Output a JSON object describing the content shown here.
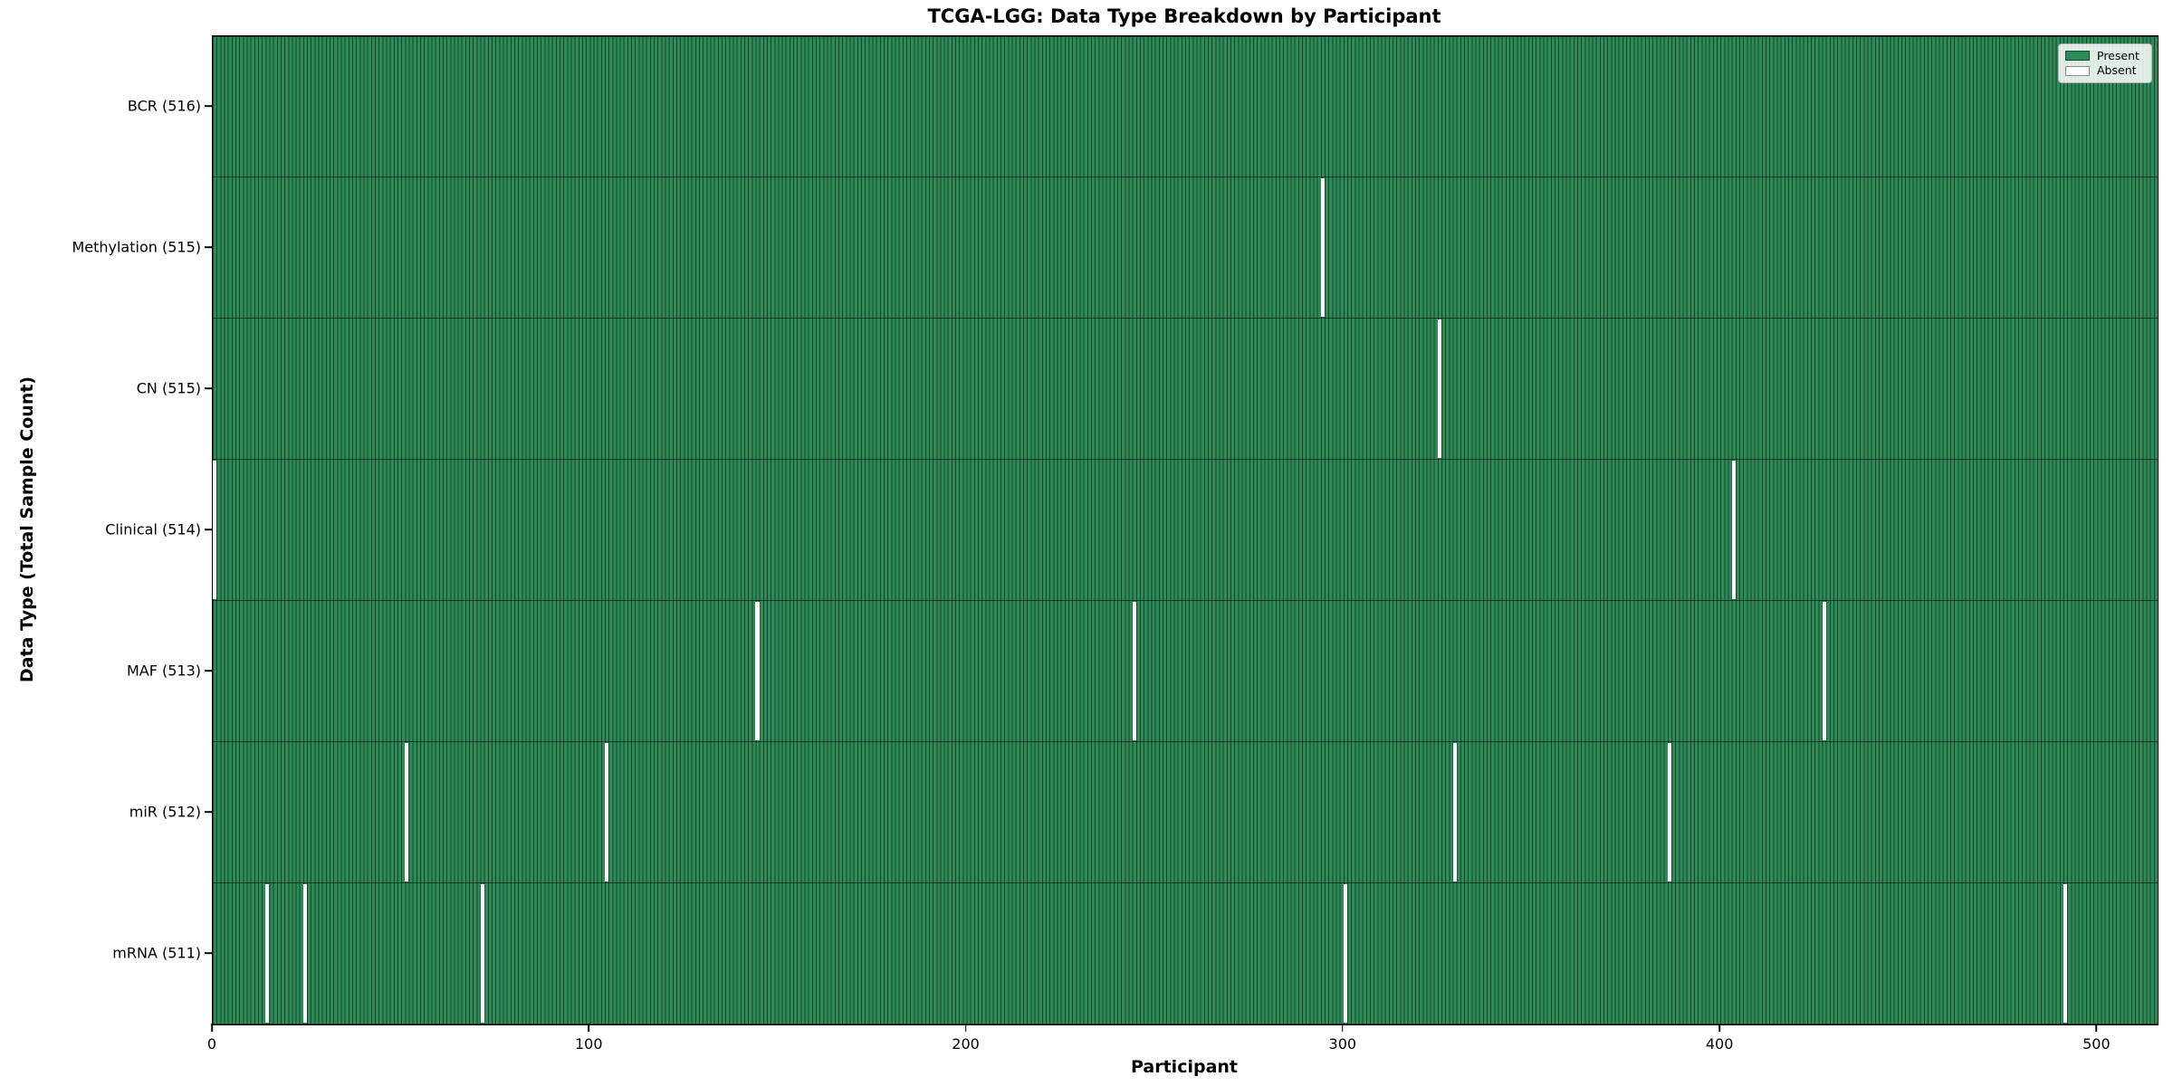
{
  "title": "TCGA-LGG: Data Type Breakdown by Participant",
  "legend": {
    "present_label": "Present",
    "absent_label": "Absent"
  },
  "colors": {
    "present": "#2E8B57",
    "absent": "#ffffff",
    "bar_edge": "#17452B"
  },
  "chart_data": {
    "type": "heatmap",
    "title": "TCGA-LGG: Data Type Breakdown by Participant",
    "xlabel": "Participant",
    "ylabel": "Data Type (Total Sample Count)",
    "x_range": [
      0,
      516
    ],
    "n_participants": 516,
    "xticks": [
      0,
      100,
      200,
      300,
      400,
      500
    ],
    "grid": false,
    "legend_position": "upper right",
    "legend": [
      {
        "label": "Present",
        "color": "#2E8B57"
      },
      {
        "label": "Absent",
        "color": "#ffffff"
      }
    ],
    "rows": [
      {
        "label": "BCR (516)",
        "data_type": "BCR",
        "total_samples": 516,
        "absent_participants": []
      },
      {
        "label": "Methylation (515)",
        "data_type": "Methylation",
        "total_samples": 515,
        "absent_participants": [
          294
        ]
      },
      {
        "label": "CN (515)",
        "data_type": "CN",
        "total_samples": 515,
        "absent_participants": [
          325
        ]
      },
      {
        "label": "Clinical (514)",
        "data_type": "Clinical",
        "total_samples": 514,
        "absent_participants": [
          0,
          403
        ]
      },
      {
        "label": "MAF (513)",
        "data_type": "MAF",
        "total_samples": 513,
        "absent_participants": [
          144,
          244,
          427
        ]
      },
      {
        "label": "miR (512)",
        "data_type": "miR",
        "total_samples": 512,
        "absent_participants": [
          51,
          104,
          329,
          386
        ]
      },
      {
        "label": "mRNA (511)",
        "data_type": "mRNA",
        "total_samples": 511,
        "absent_participants": [
          14,
          24,
          71,
          300,
          491
        ]
      }
    ]
  }
}
